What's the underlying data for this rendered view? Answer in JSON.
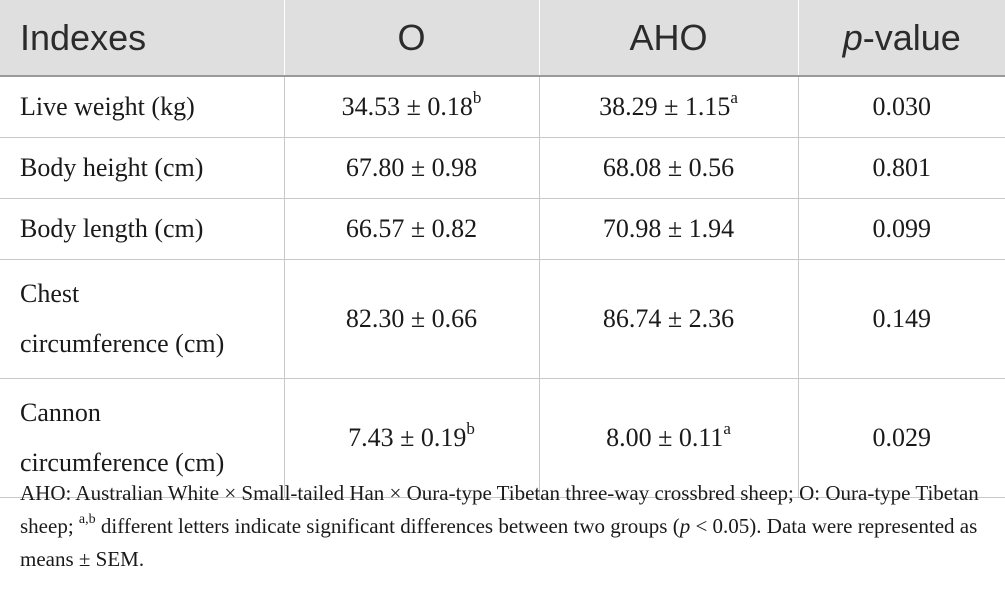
{
  "table": {
    "header": {
      "indexes": "Indexes",
      "o": "O",
      "aho": "AHO",
      "p_italic": "p",
      "p_rest": "-value"
    },
    "rows": [
      {
        "index": "Live weight (kg)",
        "o": "34.53 ± 0.18",
        "o_sup": "b",
        "aho": "38.29 ± 1.15",
        "aho_sup": "a",
        "p": "0.030"
      },
      {
        "index": "Body height (cm)",
        "o": "67.80 ± 0.98",
        "o_sup": "",
        "aho": "68.08 ± 0.56",
        "aho_sup": "",
        "p": "0.801"
      },
      {
        "index": "Body length (cm)",
        "o": "66.57 ± 0.82",
        "o_sup": "",
        "aho": "70.98 ± 1.94",
        "aho_sup": "",
        "p": "0.099"
      },
      {
        "index_line1": "Chest",
        "index_line2": "circumference (cm)",
        "o": "82.30 ± 0.66",
        "o_sup": "",
        "aho": "86.74 ± 2.36",
        "aho_sup": "",
        "p": "0.149"
      },
      {
        "index_line1": "Cannon",
        "index_line2": "circumference (cm)",
        "o": "7.43 ± 0.19",
        "o_sup": "b",
        "aho": "8.00 ± 0.11",
        "aho_sup": "a",
        "p": "0.029"
      }
    ]
  },
  "footnote": {
    "part1": "AHO: Australian White × Small-tailed Han × Oura-type Tibetan three-way crossbred sheep; O: Oura-type Tibetan sheep; ",
    "sup": "a,b",
    "part2": " different letters indicate significant differences between two groups (",
    "p_italic": "p",
    "part3": " < 0.05). Data were represented as means ± SEM."
  }
}
